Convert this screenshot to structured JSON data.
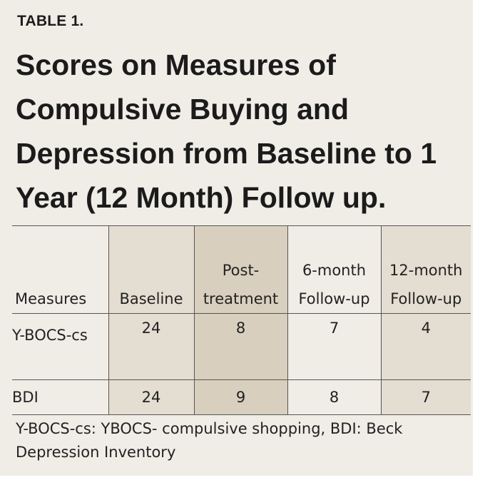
{
  "eyebrow": "TABLE 1.",
  "title": "Scores on Measures of Compulsive Buying and Depression from Baseline to 1 Year (12 Month) Follow up.",
  "table": {
    "headers": [
      "Measures",
      "Baseline",
      "Post-treatment",
      "6-month Follow-up",
      "12-month Follow-up"
    ],
    "rows": [
      [
        "Y-BOCS-cs",
        "24",
        "8",
        "7",
        "4"
      ],
      [
        "BDI",
        "24",
        "9",
        "8",
        "7"
      ]
    ]
  },
  "caption": "Y-BOCS-cs: YBOCS- compulsive shopping, BDI: Beck Depression Inventory",
  "colors": {
    "background": "#f0ede7",
    "shade_light": "#e4ddd1",
    "shade_dark": "#d9cfbe"
  }
}
